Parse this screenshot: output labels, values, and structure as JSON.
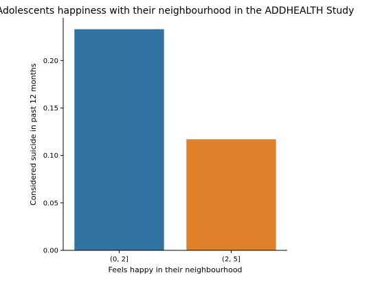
{
  "chart_data": {
    "type": "bar",
    "title": "Adolescents happiness with their neighbourhood in the ADDHEALTH Study",
    "xlabel": "Feels happy in their neighbourhood",
    "ylabel": "Considered suicide in past 12 months",
    "categories": [
      "(0, 2]",
      "(2, 5]"
    ],
    "values": [
      0.233,
      0.117
    ],
    "bar_colors": [
      "#3274a1",
      "#e1812c"
    ],
    "ylim": [
      0,
      0.245
    ],
    "yticks": [
      0.0,
      0.05,
      0.1,
      0.15,
      0.2
    ],
    "ytick_labels": [
      "0.00",
      "0.05",
      "0.10",
      "0.15",
      "0.20"
    ],
    "grid": false,
    "legend": "none"
  }
}
